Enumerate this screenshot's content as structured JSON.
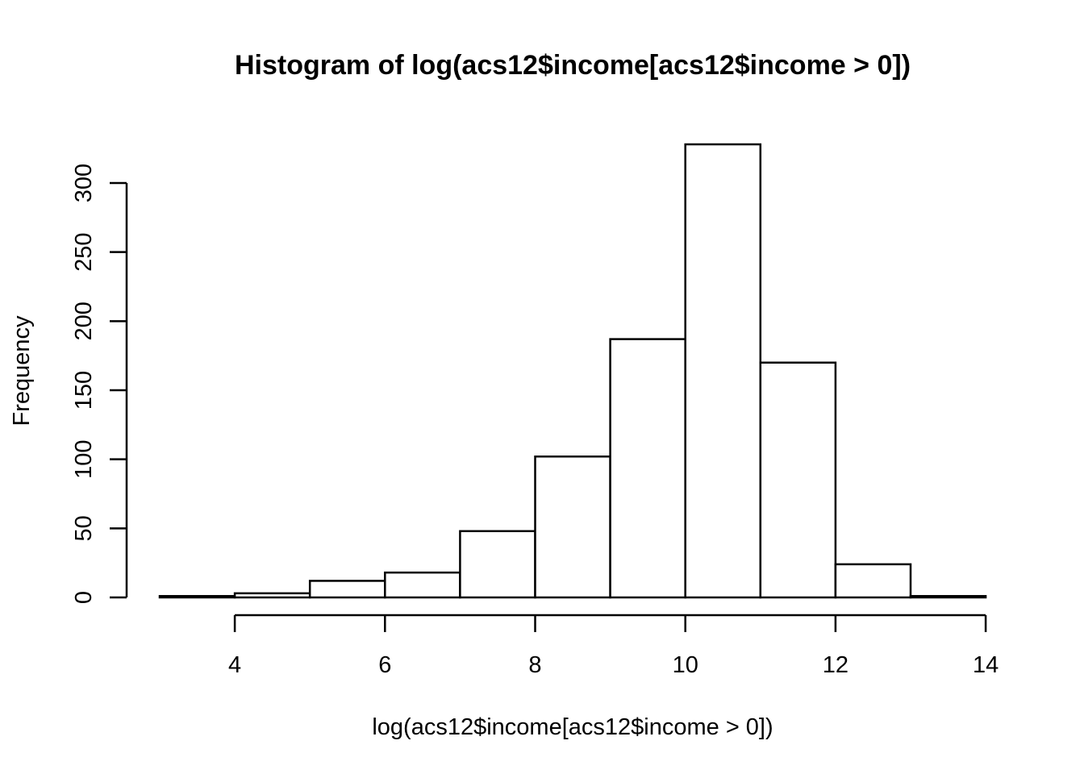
{
  "chart_data": {
    "type": "bar",
    "title": "Histogram of log(acs12$income[acs12$income > 0])",
    "xlabel": "log(acs12$income[acs12$income > 0])",
    "ylabel": "Frequency",
    "bins": [
      {
        "x0": 3,
        "x1": 4,
        "count": 1
      },
      {
        "x0": 4,
        "x1": 5,
        "count": 3
      },
      {
        "x0": 5,
        "x1": 6,
        "count": 12
      },
      {
        "x0": 6,
        "x1": 7,
        "count": 18
      },
      {
        "x0": 7,
        "x1": 8,
        "count": 48
      },
      {
        "x0": 8,
        "x1": 9,
        "count": 102
      },
      {
        "x0": 9,
        "x1": 10,
        "count": 187
      },
      {
        "x0": 10,
        "x1": 11,
        "count": 328
      },
      {
        "x0": 11,
        "x1": 12,
        "count": 170
      },
      {
        "x0": 12,
        "x1": 13,
        "count": 24
      },
      {
        "x0": 13,
        "x1": 14,
        "count": 1
      }
    ],
    "x_ticks": [
      4,
      6,
      8,
      10,
      12,
      14
    ],
    "y_ticks": [
      0,
      50,
      100,
      150,
      200,
      250,
      300
    ],
    "xlim": [
      3,
      14
    ],
    "ylim": [
      0,
      328
    ],
    "grid": false,
    "bar_fill": "#ffffff",
    "bar_stroke": "#000000"
  }
}
